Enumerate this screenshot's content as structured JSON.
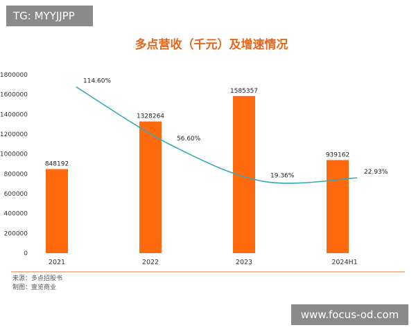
{
  "watermark_tag": "TG: MYYJJPP",
  "watermark_url": "www.focus-od.com",
  "chart_data": {
    "type": "bar",
    "title": "多点营收（千元）及增速情况",
    "categories": [
      "2021",
      "2022",
      "2023",
      "2024H1"
    ],
    "series": [
      {
        "values": [
          848192,
          1328264,
          1585357,
          939162
        ]
      },
      {
        "values": [
          114.6,
          56.6,
          19.36,
          22.93
        ]
      }
    ],
    "value_labels": [
      "848192",
      "1328264",
      "1585357",
      "939162"
    ],
    "pct_labels": [
      "114.60%",
      "56.60%",
      "19.36%",
      "22.93%"
    ],
    "ylim": [
      0,
      1800000
    ],
    "yticks": [
      "0",
      "200000",
      "400000",
      "600000",
      "800000",
      "1000000",
      "1200000",
      "1400000",
      "1600000",
      "1800000"
    ],
    "grid": false,
    "colors": {
      "bar": "#ff6a0e",
      "line": "#35a7b8",
      "title": "#e8661c",
      "baseline": "#f2a46b"
    },
    "source_note": "来源：多点招股书",
    "made_by_note": "制图：壹览商业"
  }
}
